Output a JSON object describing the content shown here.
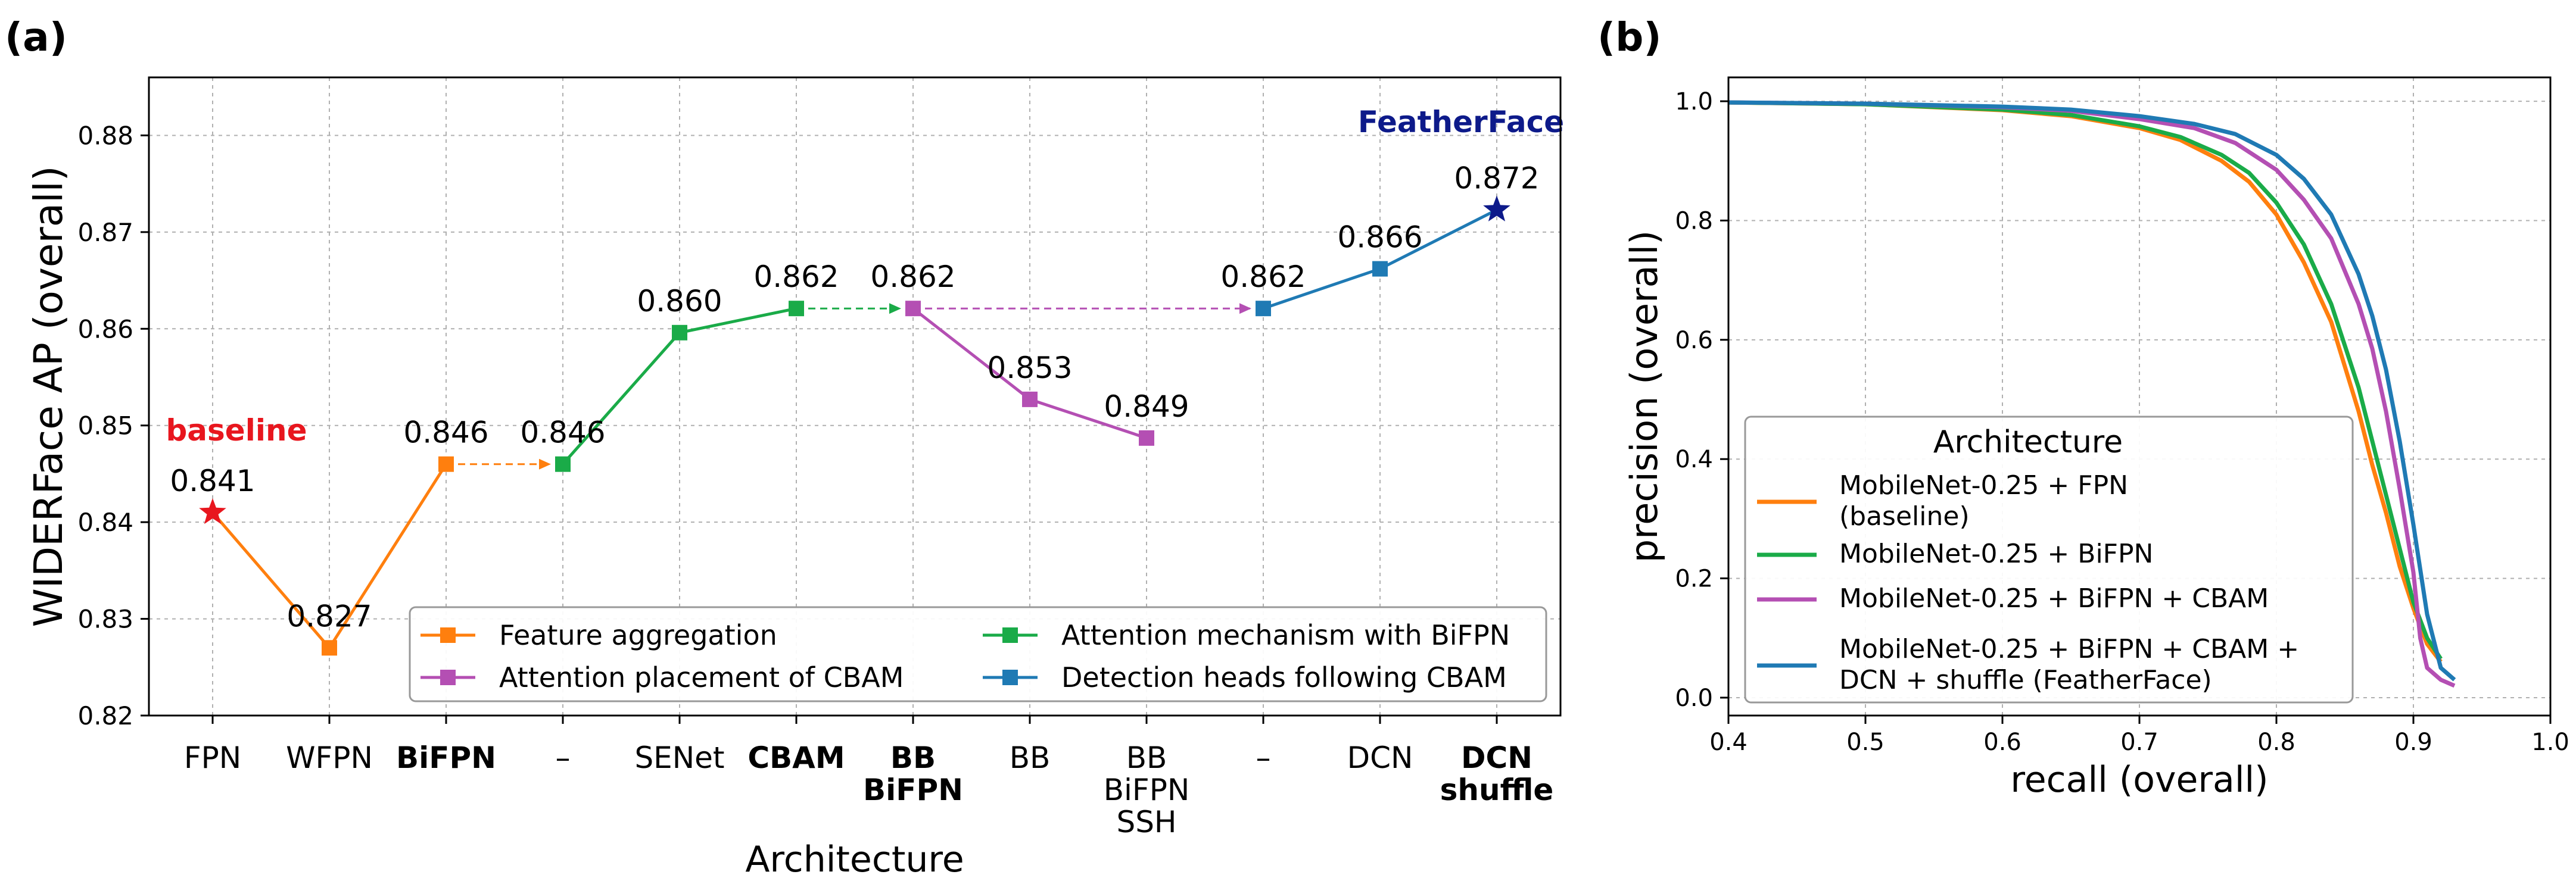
{
  "panels": {
    "a": "(a)",
    "b": "(b)"
  },
  "colors": {
    "orange": "#ff7f0e",
    "green": "#1aab48",
    "purple": "#b44fb3",
    "blue": "#1f7ab4",
    "red": "#e8161e",
    "navy": "#0d1a8a",
    "grid": "#b0b0b0"
  },
  "chart_data": [
    {
      "type": "line",
      "panel": "(a)",
      "xlabel": "Architecture",
      "ylabel": "WIDERFace AP (overall)",
      "ylim": [
        0.82,
        0.886
      ],
      "yticks": [
        "0.82",
        "0.83",
        "0.84",
        "0.85",
        "0.86",
        "0.87",
        "0.88"
      ],
      "categories": [
        {
          "lines": [
            "FPN"
          ],
          "bold": false
        },
        {
          "lines": [
            "WFPN"
          ],
          "bold": false
        },
        {
          "lines": [
            "BiFPN"
          ],
          "bold": true
        },
        {
          "lines": [
            "–"
          ],
          "bold": false
        },
        {
          "lines": [
            "SENet"
          ],
          "bold": false
        },
        {
          "lines": [
            "CBAM"
          ],
          "bold": true
        },
        {
          "lines": [
            "BB",
            "BiFPN"
          ],
          "bold": true
        },
        {
          "lines": [
            "BB"
          ],
          "bold": false
        },
        {
          "lines": [
            "BB",
            "BiFPN",
            "SSH"
          ],
          "bold": false
        },
        {
          "lines": [
            "–"
          ],
          "bold": false
        },
        {
          "lines": [
            "DCN"
          ],
          "bold": false
        },
        {
          "lines": [
            "DCN",
            "shuffle"
          ],
          "bold": true
        }
      ],
      "series": [
        {
          "name": "Feature aggregation",
          "color": "orange",
          "points": [
            [
              0,
              0.841
            ],
            [
              1,
              0.827
            ],
            [
              2,
              0.846
            ]
          ]
        },
        {
          "name": "Attention mechanism with BiFPN",
          "color": "green",
          "points": [
            [
              3,
              0.846
            ],
            [
              4,
              0.8596
            ],
            [
              5,
              0.8621
            ]
          ]
        },
        {
          "name": "Attention placement of CBAM",
          "color": "purple",
          "points": [
            [
              6,
              0.8621
            ],
            [
              7,
              0.8527
            ],
            [
              8,
              0.8487
            ]
          ]
        },
        {
          "name": "Detection heads following CBAM",
          "color": "blue",
          "points": [
            [
              9,
              0.8621
            ],
            [
              10,
              0.8662
            ],
            [
              11,
              0.8723
            ]
          ]
        }
      ],
      "dashed_links": [
        {
          "from": [
            2,
            0.846
          ],
          "to": [
            3,
            0.846
          ],
          "color": "orange"
        },
        {
          "from": [
            5,
            0.8621
          ],
          "to": [
            6,
            0.8621
          ],
          "color": "green"
        },
        {
          "from": [
            6,
            0.8621
          ],
          "to": [
            9,
            0.8621
          ],
          "color": "purple"
        }
      ],
      "value_labels": [
        {
          "i": 0,
          "y": 0.841,
          "text": "0.841"
        },
        {
          "i": 1,
          "y": 0.827,
          "text": "0.827"
        },
        {
          "i": 2,
          "y": 0.846,
          "text": "0.846"
        },
        {
          "i": 3,
          "y": 0.846,
          "text": "0.846"
        },
        {
          "i": 4,
          "y": 0.8596,
          "text": "0.860"
        },
        {
          "i": 5,
          "y": 0.8621,
          "text": "0.862"
        },
        {
          "i": 6,
          "y": 0.8621,
          "text": "0.862"
        },
        {
          "i": 7,
          "y": 0.8527,
          "text": "0.853"
        },
        {
          "i": 8,
          "y": 0.8487,
          "text": "0.849"
        },
        {
          "i": 9,
          "y": 0.8621,
          "text": "0.862"
        },
        {
          "i": 10,
          "y": 0.8662,
          "text": "0.866"
        },
        {
          "i": 11,
          "y": 0.8723,
          "text": "0.872"
        }
      ],
      "annotations": [
        {
          "text": "baseline",
          "i": 0,
          "color": "red"
        },
        {
          "text": "FeatherFace",
          "i": 11,
          "color": "navy"
        }
      ],
      "stars": [
        {
          "i": 0,
          "y": 0.841,
          "color": "red"
        },
        {
          "i": 11,
          "y": 0.8723,
          "color": "navy"
        }
      ],
      "legend": {
        "position": "lower-right",
        "columns": [
          [
            "Feature aggregation",
            "Attention placement of CBAM"
          ],
          [
            "Attention mechanism with BiFPN",
            "Detection heads following CBAM"
          ]
        ]
      }
    },
    {
      "type": "line",
      "panel": "(b)",
      "xlabel": "recall (overall)",
      "ylabel": "precision (overall)",
      "xlim": [
        0.4,
        1.0
      ],
      "ylim": [
        -0.03,
        1.04
      ],
      "xticks": [
        "0.4",
        "0.5",
        "0.6",
        "0.7",
        "0.8",
        "0.9",
        "1.0"
      ],
      "yticks": [
        "0.0",
        "0.2",
        "0.4",
        "0.6",
        "0.8",
        "1.0"
      ],
      "legend": {
        "title": "Architecture",
        "position": "lower-left"
      },
      "series": [
        {
          "name": "MobileNet-0.25 + FPN (baseline)",
          "legend_lines": [
            "MobileNet-0.25 + FPN",
            "(baseline)"
          ],
          "color": "orange",
          "points": [
            [
              0.4,
              0.998
            ],
            [
              0.5,
              0.995
            ],
            [
              0.6,
              0.985
            ],
            [
              0.65,
              0.975
            ],
            [
              0.7,
              0.955
            ],
            [
              0.73,
              0.935
            ],
            [
              0.76,
              0.9
            ],
            [
              0.78,
              0.865
            ],
            [
              0.8,
              0.81
            ],
            [
              0.82,
              0.73
            ],
            [
              0.84,
              0.63
            ],
            [
              0.86,
              0.48
            ],
            [
              0.87,
              0.39
            ],
            [
              0.88,
              0.31
            ],
            [
              0.89,
              0.22
            ],
            [
              0.9,
              0.15
            ],
            [
              0.91,
              0.09
            ],
            [
              0.92,
              0.06
            ]
          ]
        },
        {
          "name": "MobileNet-0.25 + BiFPN",
          "legend_lines": [
            "MobileNet-0.25 + BiFPN"
          ],
          "color": "green",
          "points": [
            [
              0.4,
              0.998
            ],
            [
              0.5,
              0.995
            ],
            [
              0.6,
              0.986
            ],
            [
              0.65,
              0.977
            ],
            [
              0.7,
              0.958
            ],
            [
              0.73,
              0.94
            ],
            [
              0.76,
              0.91
            ],
            [
              0.78,
              0.88
            ],
            [
              0.8,
              0.83
            ],
            [
              0.82,
              0.76
            ],
            [
              0.84,
              0.66
            ],
            [
              0.86,
              0.52
            ],
            [
              0.87,
              0.43
            ],
            [
              0.88,
              0.34
            ],
            [
              0.89,
              0.25
            ],
            [
              0.9,
              0.16
            ],
            [
              0.91,
              0.1
            ],
            [
              0.92,
              0.065
            ]
          ]
        },
        {
          "name": "MobileNet-0.25 + BiFPN + CBAM",
          "legend_lines": [
            "MobileNet-0.25 + BiFPN + CBAM"
          ],
          "color": "purple",
          "points": [
            [
              0.4,
              0.998
            ],
            [
              0.5,
              0.996
            ],
            [
              0.6,
              0.99
            ],
            [
              0.65,
              0.984
            ],
            [
              0.7,
              0.97
            ],
            [
              0.74,
              0.955
            ],
            [
              0.77,
              0.93
            ],
            [
              0.8,
              0.885
            ],
            [
              0.82,
              0.835
            ],
            [
              0.84,
              0.77
            ],
            [
              0.86,
              0.66
            ],
            [
              0.87,
              0.585
            ],
            [
              0.88,
              0.48
            ],
            [
              0.89,
              0.35
            ],
            [
              0.9,
              0.21
            ],
            [
              0.905,
              0.1
            ],
            [
              0.91,
              0.05
            ],
            [
              0.92,
              0.03
            ],
            [
              0.93,
              0.02
            ]
          ]
        },
        {
          "name": "MobileNet-0.25 + BiFPN + CBAM + DCN + shuffle (FeatherFace)",
          "legend_lines": [
            "MobileNet-0.25 + BiFPN + CBAM +",
            "DCN + shuffle (FeatherFace)"
          ],
          "color": "blue",
          "points": [
            [
              0.4,
              0.998
            ],
            [
              0.5,
              0.996
            ],
            [
              0.6,
              0.991
            ],
            [
              0.65,
              0.986
            ],
            [
              0.7,
              0.975
            ],
            [
              0.74,
              0.962
            ],
            [
              0.77,
              0.945
            ],
            [
              0.8,
              0.91
            ],
            [
              0.82,
              0.87
            ],
            [
              0.84,
              0.81
            ],
            [
              0.86,
              0.71
            ],
            [
              0.87,
              0.64
            ],
            [
              0.88,
              0.55
            ],
            [
              0.89,
              0.43
            ],
            [
              0.9,
              0.29
            ],
            [
              0.91,
              0.14
            ],
            [
              0.92,
              0.05
            ],
            [
              0.93,
              0.03
            ]
          ]
        }
      ]
    }
  ]
}
